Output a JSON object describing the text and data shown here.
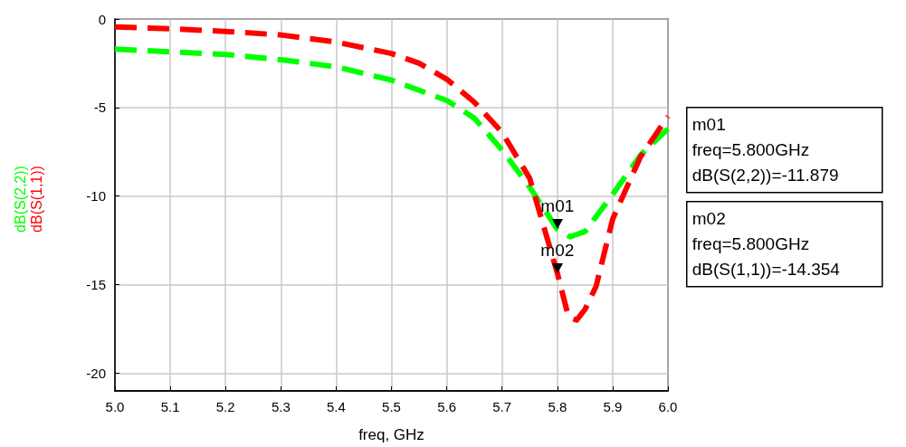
{
  "chart_data": {
    "type": "line",
    "xlabel": "freq, GHz",
    "x": [
      5.0,
      5.1,
      5.2,
      5.3,
      5.4,
      5.5,
      5.55,
      5.6,
      5.65,
      5.7,
      5.75,
      5.8,
      5.82,
      5.835,
      5.85,
      5.87,
      5.9,
      5.95,
      6.0
    ],
    "series": [
      {
        "name": "dB(S(2,2))",
        "color": "#00ff00",
        "x": [
          5.0,
          5.1,
          5.2,
          5.3,
          5.4,
          5.5,
          5.6,
          5.65,
          5.7,
          5.75,
          5.8,
          5.823,
          5.85,
          5.9,
          5.95,
          6.0
        ],
        "values": [
          -1.7,
          -1.85,
          -2.0,
          -2.3,
          -2.7,
          -3.45,
          -4.6,
          -5.6,
          -7.4,
          -9.5,
          -11.879,
          -12.3,
          -12.0,
          -9.9,
          -7.7,
          -6.2
        ]
      },
      {
        "name": "dB(S(1,1))",
        "color": "#ff0000",
        "values": [
          -0.45,
          -0.55,
          -0.7,
          -0.9,
          -1.3,
          -1.95,
          -2.5,
          -3.4,
          -4.7,
          -6.4,
          -9.0,
          -14.354,
          -16.8,
          -17.0,
          -16.4,
          -15.1,
          -11.3,
          -7.8,
          -5.5
        ]
      }
    ],
    "annotations": [
      {
        "text": "m01",
        "x": 5.8,
        "y": -11.879
      },
      {
        "text": "m02",
        "x": 5.8,
        "y": -14.354
      },
      "m01\nfreq=5.800GHz\ndB(S(2,2))=-11.879",
      "m02\nfreq=5.800GHz\ndB(S(1,1))=-14.354"
    ],
    "xlim": [
      5.0,
      6.0
    ],
    "xticks": [
      {
        "value": 5.0,
        "label": "5.0"
      },
      5.1,
      5.2,
      5.3,
      5.4,
      5.5,
      5.6,
      5.7,
      5.8,
      5.9,
      {
        "value": 6.0,
        "label": "6.0"
      }
    ],
    "ylim": [
      -21,
      0
    ],
    "yticks": [
      -20,
      -15,
      -10,
      -5,
      0
    ],
    "grid": true,
    "legend": false,
    "marker": "none",
    "line_style": "dashed"
  }
}
